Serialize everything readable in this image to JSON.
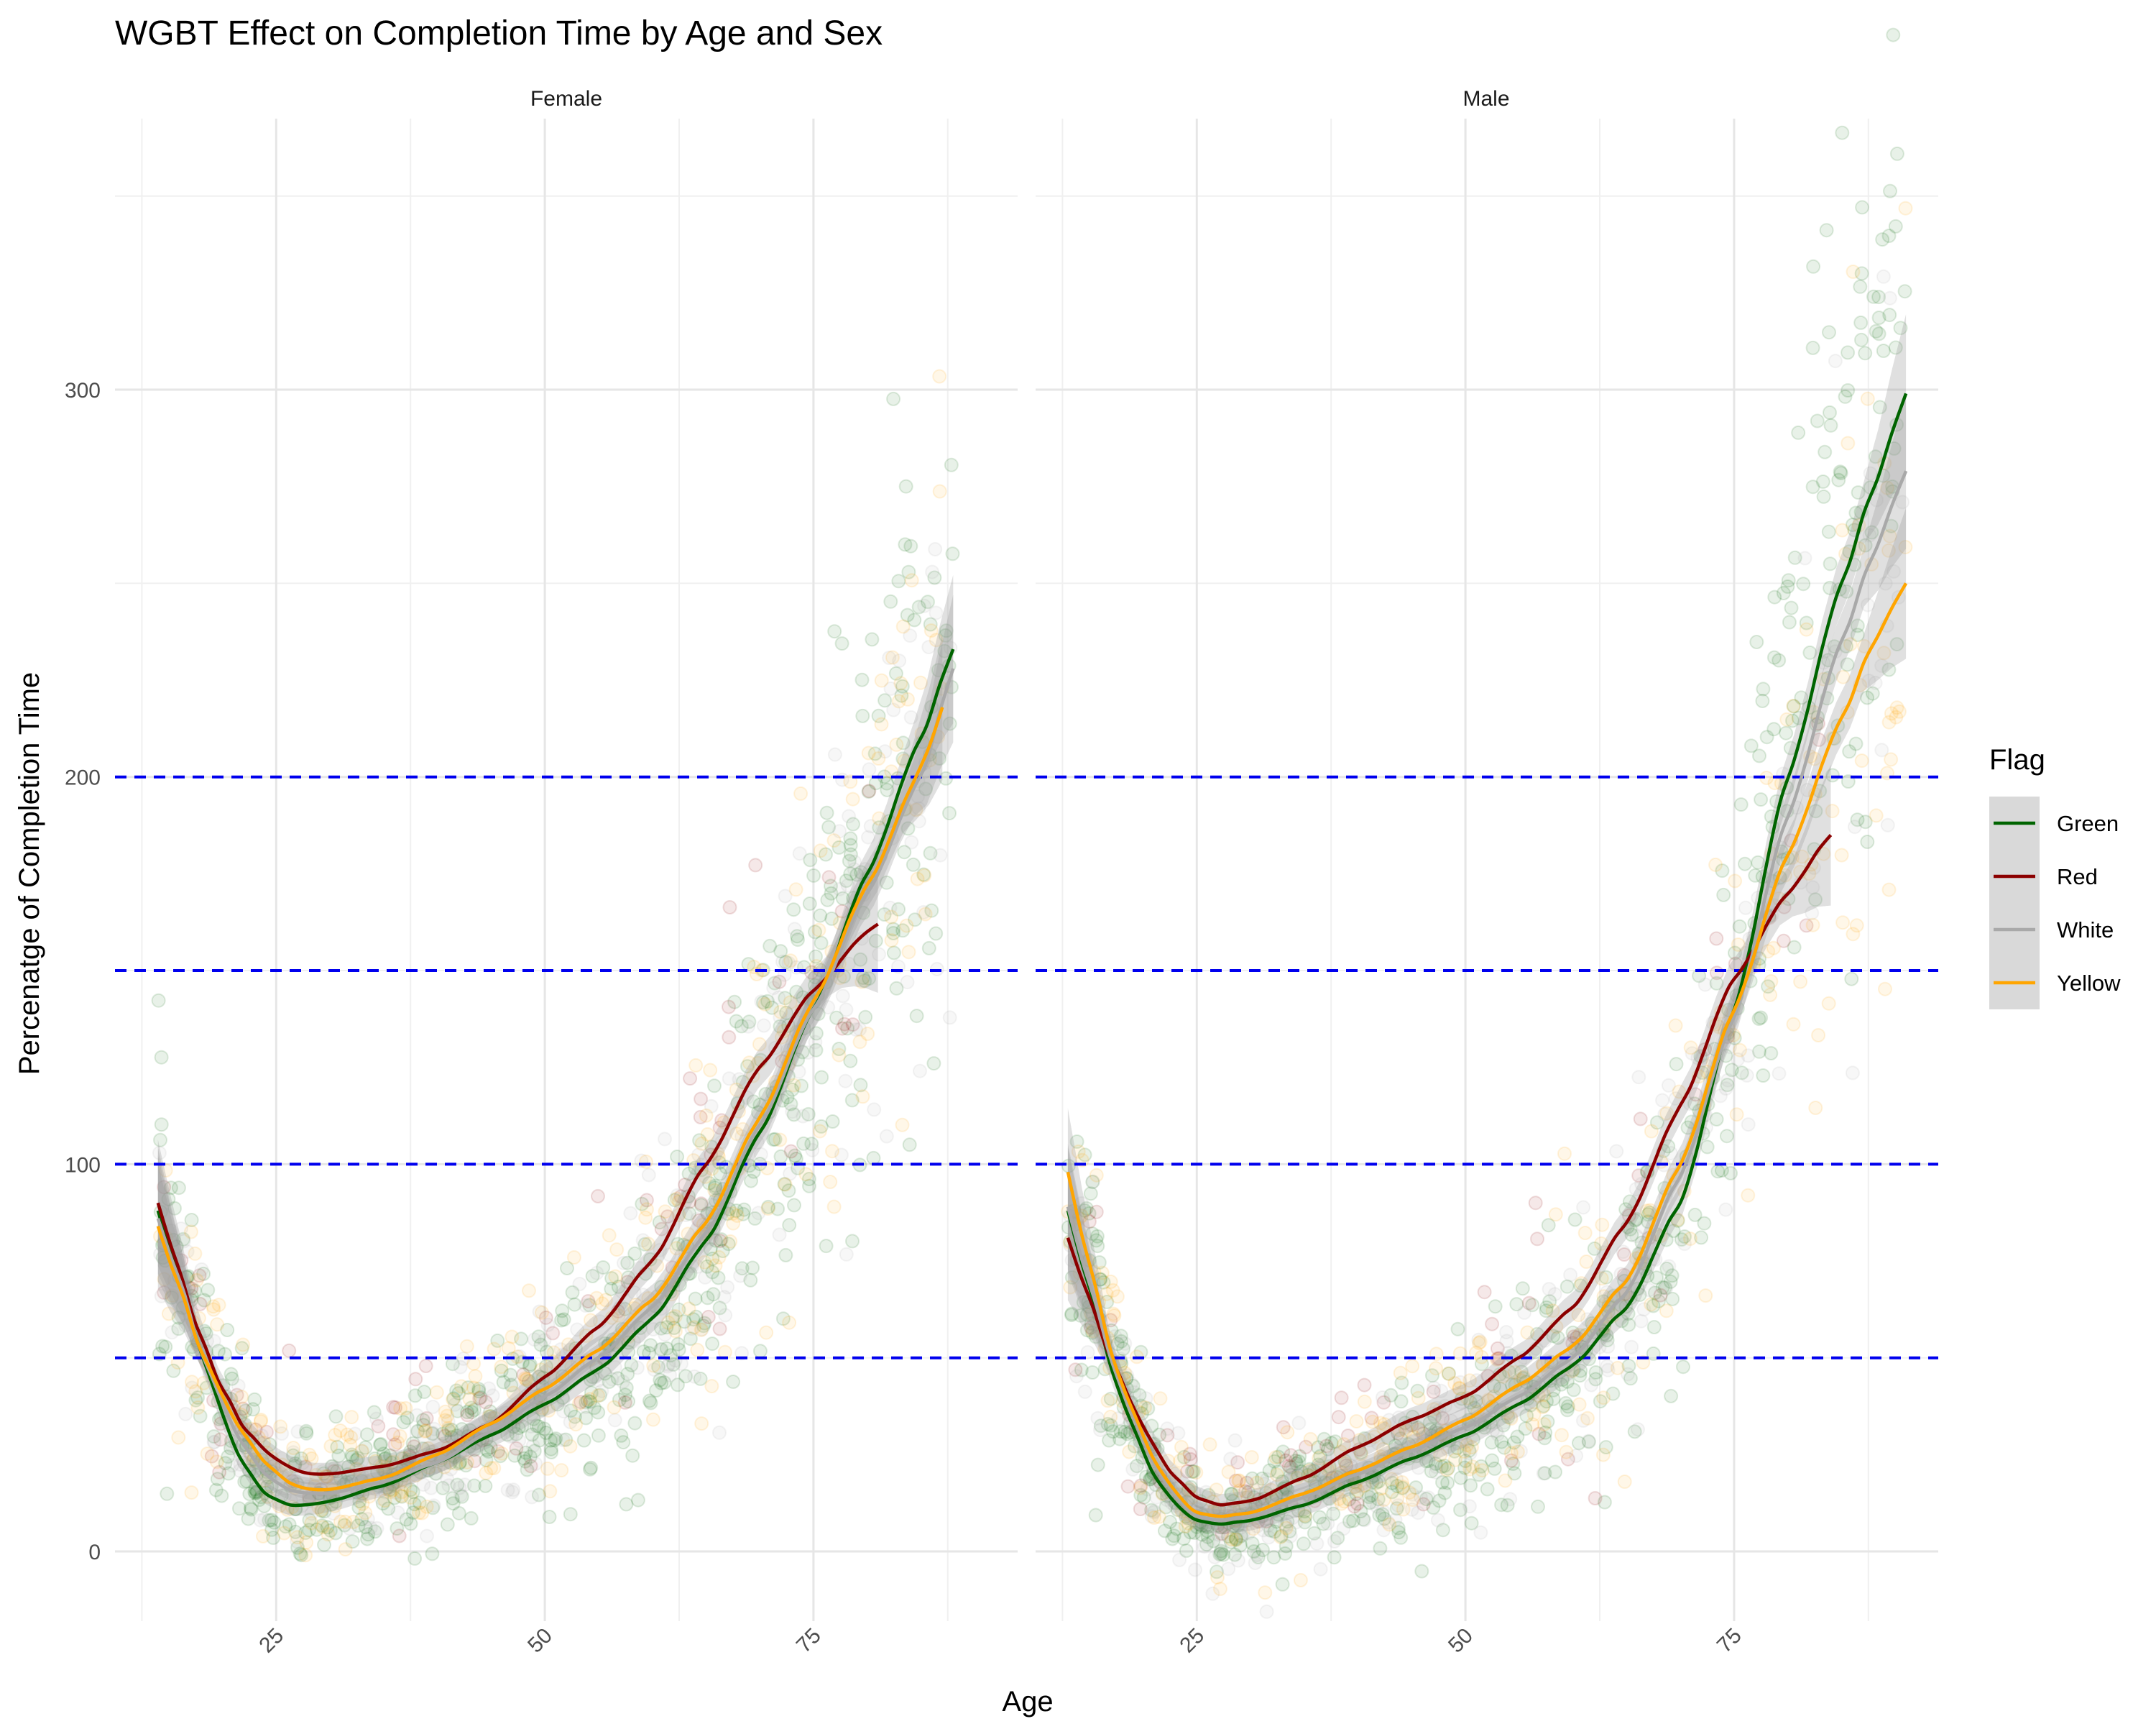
{
  "chart_data": {
    "type": "scatter",
    "title": "WGBT Effect on Completion Time by Age and Sex",
    "xlabel": "Age",
    "ylabel": "Percenatge of Completion Time",
    "xlim": [
      10,
      94
    ],
    "ylim": [
      -18,
      370
    ],
    "x_ticks": [
      25,
      50,
      75
    ],
    "y_ticks": [
      0,
      100,
      200,
      300
    ],
    "reference_lines": [
      50,
      100,
      150,
      200
    ],
    "grid": true,
    "legend": {
      "title": "Flag",
      "placement": "right",
      "entries": [
        "Green",
        "Red",
        "White",
        "Yellow"
      ]
    },
    "colors": {
      "Green": "#006400",
      "Red": "#8B0000",
      "White": "#A9A9A9",
      "Yellow": "#FFA500",
      "reference_line": "#0000EE",
      "ribbon": "#999999"
    },
    "panels": [
      {
        "label": "Female",
        "age_range": [
          14,
          88
        ],
        "series": [
          {
            "name": "Green",
            "x": [
              14,
              16,
              18,
              20,
              22,
              24,
              26,
              28,
              30,
              35,
              40,
              45,
              50,
              55,
              60,
              65,
              70,
              75,
              80,
              85,
              88
            ],
            "y": [
              88,
              70,
              52,
              35,
              22,
              15,
              12,
              12,
              13,
              17,
              23,
              30,
              38,
              47,
              60,
              80,
              108,
              140,
              175,
              210,
              233
            ]
          },
          {
            "name": "Red",
            "x": [
              14,
              16,
              18,
              20,
              22,
              24,
              26,
              28,
              30,
              35,
              40,
              45,
              50,
              55,
              60,
              65,
              70,
              75,
              80,
              81
            ],
            "y": [
              90,
              72,
              55,
              42,
              32,
              26,
              22,
              20,
              20,
              22,
              26,
              33,
              45,
              58,
              75,
              100,
              125,
              145,
              160,
              162
            ]
          },
          {
            "name": "White",
            "x": [
              14,
              16,
              18,
              20,
              22,
              24,
              26,
              28,
              30,
              35,
              40,
              45,
              50,
              55,
              60,
              65,
              70,
              75,
              80,
              85,
              88
            ],
            "y": [
              86,
              70,
              52,
              38,
              27,
              20,
              16,
              15,
              15,
              18,
              23,
              31,
              40,
              50,
              63,
              82,
              110,
              140,
              170,
              200,
              228
            ]
          },
          {
            "name": "Yellow",
            "x": [
              14,
              16,
              18,
              20,
              22,
              24,
              26,
              28,
              30,
              35,
              40,
              45,
              50,
              55,
              60,
              65,
              70,
              75,
              80,
              85,
              87
            ],
            "y": [
              84,
              68,
              52,
              40,
              30,
              23,
              18,
              16,
              16,
              19,
              25,
              33,
              42,
              52,
              65,
              85,
              112,
              142,
              172,
              202,
              218
            ]
          }
        ]
      },
      {
        "label": "Male",
        "age_range": [
          13,
          91
        ],
        "series": [
          {
            "name": "Green",
            "x": [
              13,
              15,
              17,
              19,
              21,
              23,
              25,
              27,
              30,
              35,
              40,
              45,
              50,
              55,
              60,
              65,
              70,
              75,
              80,
              85,
              88,
              91
            ],
            "y": [
              88,
              68,
              48,
              32,
              20,
              12,
              8,
              7,
              8,
              12,
              18,
              24,
              30,
              38,
              48,
              63,
              90,
              140,
              200,
              250,
              275,
              299
            ]
          },
          {
            "name": "Red",
            "x": [
              13,
              15,
              17,
              19,
              21,
              23,
              25,
              27,
              30,
              35,
              40,
              45,
              50,
              55,
              60,
              65,
              70,
              75,
              80,
              84
            ],
            "y": [
              81,
              65,
              50,
              38,
              27,
              19,
              14,
              12,
              13,
              19,
              27,
              34,
              40,
              50,
              63,
              85,
              115,
              148,
              170,
              185
            ]
          },
          {
            "name": "White",
            "x": [
              13,
              15,
              17,
              19,
              21,
              23,
              25,
              27,
              30,
              35,
              40,
              45,
              50,
              55,
              60,
              65,
              70,
              75,
              80,
              85,
              88,
              91
            ],
            "y": [
              89,
              69,
              50,
              35,
              23,
              14,
              9,
              8,
              9,
              14,
              20,
              26,
              32,
              40,
              50,
              67,
              97,
              138,
              190,
              235,
              258,
              279
            ]
          },
          {
            "name": "Yellow",
            "x": [
              13,
              15,
              17,
              19,
              21,
              23,
              25,
              27,
              30,
              35,
              40,
              45,
              50,
              55,
              60,
              65,
              70,
              75,
              80,
              85,
              88,
              91
            ],
            "y": [
              98,
              74,
              52,
              36,
              24,
              15,
              10,
              9,
              10,
              15,
              21,
              27,
              34,
              43,
              53,
              70,
              100,
              140,
              180,
              215,
              235,
              250
            ]
          }
        ]
      }
    ]
  }
}
